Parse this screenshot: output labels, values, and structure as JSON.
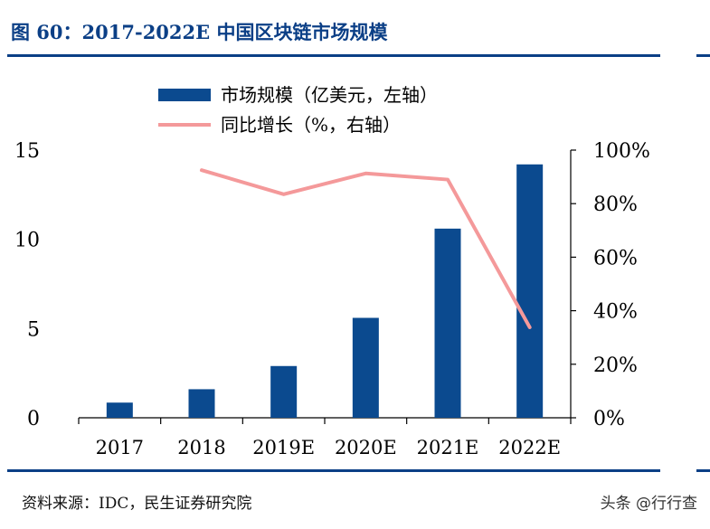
{
  "figure_title": "图 60：2017-2022E 中国区块链市场规模",
  "source_text": "资料来源：IDC，民生证券研究院",
  "corner_watermark": "头条 @行行查",
  "colors": {
    "bar": "#0b4a8f",
    "line": "#f4999a",
    "rule": "#0b3f86"
  },
  "chart_data": {
    "type": "bar",
    "categories": [
      "2017",
      "2018",
      "2019E",
      "2020E",
      "2021E",
      "2022E"
    ],
    "series": [
      {
        "name": "市场规模（亿美元，左轴）",
        "type": "bar",
        "axis": "left",
        "values": [
          0.85,
          1.6,
          2.9,
          5.6,
          10.6,
          14.2
        ]
      },
      {
        "name": "同比增长（%，右轴）",
        "type": "line",
        "axis": "right",
        "values": [
          null,
          92.5,
          83.5,
          91.3,
          89.0,
          33.8
        ]
      }
    ],
    "left_axis": {
      "ylim": [
        0,
        15
      ],
      "ticks": [
        "0",
        "5",
        "10",
        "15"
      ]
    },
    "right_axis": {
      "ylim": [
        0,
        100
      ],
      "ticks": [
        "0%",
        "20%",
        "40%",
        "60%",
        "80%",
        "100%"
      ]
    },
    "legend_position": "top-center",
    "grid": false,
    "xlabel": "",
    "ylabel": ""
  }
}
